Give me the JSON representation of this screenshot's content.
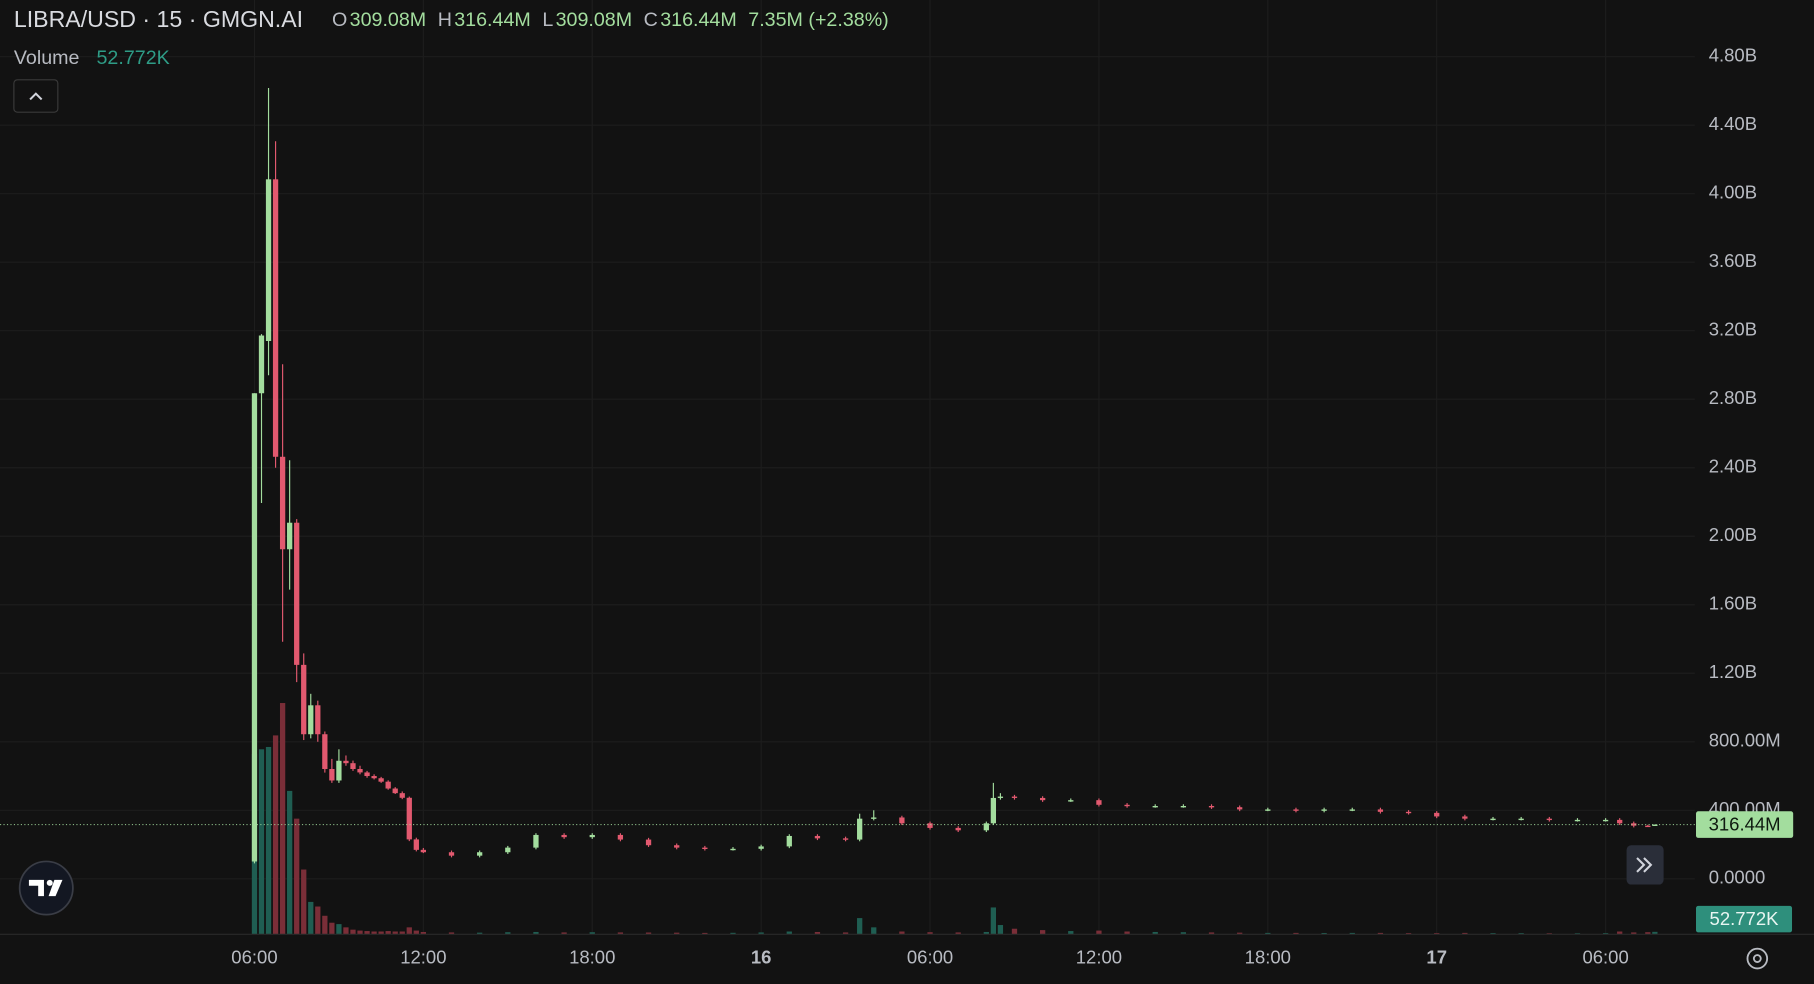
{
  "chart_data": {
    "type": "candlestick",
    "symbol": "LIBRA/USD · 15 · GMGN.AI",
    "ohlc_legend": [
      {
        "key": "O",
        "value": "309.08M"
      },
      {
        "key": "H",
        "value": "316.44M"
      },
      {
        "key": "L",
        "value": "309.08M"
      },
      {
        "key": "C",
        "value": "316.44M"
      }
    ],
    "change": "7.35M (+2.38%)",
    "volume_title": "Volume",
    "volume_value_label": "52.772K",
    "x": [
      6,
      6.25,
      6.5,
      6.75,
      7,
      7.25,
      7.5,
      7.75,
      8,
      8.25,
      8.5,
      8.75,
      9,
      9.25,
      9.5,
      9.75,
      10,
      10.25,
      10.5,
      10.75,
      11,
      11.25,
      11.5,
      11.75,
      12,
      13,
      14,
      15,
      16,
      17,
      18,
      19,
      20,
      21,
      22,
      23,
      24,
      25,
      26,
      27,
      27.5,
      28,
      29,
      30,
      31,
      32,
      32.25,
      32.5,
      33,
      34,
      35,
      36,
      37,
      38,
      39,
      40,
      41,
      42,
      43,
      44,
      45,
      46,
      47,
      48,
      49,
      50,
      51,
      52,
      53,
      54,
      54.5,
      55,
      55.5,
      55.75
    ],
    "open": [
      101000000.0,
      2835000000.0,
      3140000000.0,
      4084000000.0,
      2464000000.0,
      1924000000.0,
      2079000000.0,
      1249000000.0,
      844000000.0,
      1013000000.0,
      844000000.0,
      641000000.0,
      574000000.0,
      689000000.0,
      675000000.0,
      641000000.0,
      621000000.0,
      600000000.0,
      587000000.0,
      567000000.0,
      527000000.0,
      500000000.0,
      473000000.0,
      230000000.0,
      169000000.0,
      155000000.0,
      135000000.0,
      155000000.0,
      182000000.0,
      256000000.0,
      243000000.0,
      256000000.0,
      229000000.0,
      196000000.0,
      182000000.0,
      175000000.0,
      175000000.0,
      189000000.0,
      250000000.0,
      236000000.0,
      229000000.0,
      351000000.0,
      358000000.0,
      324000000.0,
      297000000.0,
      283000000.0,
      324000000.0,
      472000000.0,
      480000000.0,
      472000000.0,
      459000000.0,
      459000000.0,
      432000000.0,
      425000000.0,
      425000000.0,
      425000000.0,
      418000000.0,
      405000000.0,
      405000000.0,
      398000000.0,
      405000000.0,
      405000000.0,
      391000000.0,
      385000000.0,
      364000000.0,
      351000000.0,
      351000000.0,
      351000000.0,
      344000000.0,
      344000000.0,
      344000000.0,
      324000000.0,
      310000000.0,
      309080000.0
    ],
    "high": [
      2835000000.0,
      3180000000.0,
      4617000000.0,
      4306000000.0,
      3004000000.0,
      2444000000.0,
      2100000000.0,
      1316000000.0,
      1080000000.0,
      1040000000.0,
      860000000.0,
      700000000.0,
      756000000.0,
      720000000.0,
      690000000.0,
      660000000.0,
      630000000.0,
      610000000.0,
      595000000.0,
      575000000.0,
      535000000.0,
      510000000.0,
      480000000.0,
      240000000.0,
      180000000.0,
      165000000.0,
      165000000.0,
      192000000.0,
      266000000.0,
      266000000.0,
      266000000.0,
      266000000.0,
      239000000.0,
      206000000.0,
      192000000.0,
      185000000.0,
      199000000.0,
      260000000.0,
      260000000.0,
      246000000.0,
      380000000.0,
      400000000.0,
      368000000.0,
      334000000.0,
      307000000.0,
      334000000.0,
      560000000.0,
      500000000.0,
      490000000.0,
      482000000.0,
      469000000.0,
      469000000.0,
      442000000.0,
      435000000.0,
      435000000.0,
      435000000.0,
      428000000.0,
      415000000.0,
      415000000.0,
      415000000.0,
      415000000.0,
      415000000.0,
      401000000.0,
      395000000.0,
      374000000.0,
      361000000.0,
      361000000.0,
      361000000.0,
      354000000.0,
      354000000.0,
      354000000.0,
      334000000.0,
      315000000.0,
      316440000.0
    ],
    "low": [
      90000000.0,
      2194000000.0,
      2940000000.0,
      2400000000.0,
      1384000000.0,
      1688000000.0,
      1148000000.0,
      810000000.0,
      820000000.0,
      800000000.0,
      620000000.0,
      560000000.0,
      560000000.0,
      660000000.0,
      630000000.0,
      610000000.0,
      590000000.0,
      580000000.0,
      560000000.0,
      520000000.0,
      495000000.0,
      465000000.0,
      220000000.0,
      160000000.0,
      150000000.0,
      125000000.0,
      125000000.0,
      145000000.0,
      172000000.0,
      233000000.0,
      233000000.0,
      219000000.0,
      186000000.0,
      172000000.0,
      165000000.0,
      165000000.0,
      165000000.0,
      179000000.0,
      226000000.0,
      219000000.0,
      219000000.0,
      341000000.0,
      314000000.0,
      287000000.0,
      273000000.0,
      273000000.0,
      314000000.0,
      462000000.0,
      462000000.0,
      449000000.0,
      449000000.0,
      422000000.0,
      415000000.0,
      415000000.0,
      415000000.0,
      408000000.0,
      395000000.0,
      395000000.0,
      388000000.0,
      388000000.0,
      395000000.0,
      381000000.0,
      375000000.0,
      354000000.0,
      341000000.0,
      341000000.0,
      341000000.0,
      334000000.0,
      334000000.0,
      334000000.0,
      314000000.0,
      300000000.0,
      305000000.0,
      309080000.0
    ],
    "close": [
      2835000000.0,
      3172000000.0,
      4084000000.0,
      2464000000.0,
      1924000000.0,
      2079000000.0,
      1249000000.0,
      844000000.0,
      1013000000.0,
      844000000.0,
      641000000.0,
      574000000.0,
      689000000.0,
      675000000.0,
      641000000.0,
      621000000.0,
      600000000.0,
      587000000.0,
      567000000.0,
      527000000.0,
      500000000.0,
      473000000.0,
      230000000.0,
      169000000.0,
      155000000.0,
      135000000.0,
      155000000.0,
      182000000.0,
      256000000.0,
      243000000.0,
      256000000.0,
      229000000.0,
      196000000.0,
      182000000.0,
      175000000.0,
      175000000.0,
      189000000.0,
      250000000.0,
      236000000.0,
      229000000.0,
      351000000.0,
      358000000.0,
      324000000.0,
      297000000.0,
      283000000.0,
      324000000.0,
      472000000.0,
      480000000.0,
      472000000.0,
      459000000.0,
      459000000.0,
      432000000.0,
      425000000.0,
      425000000.0,
      425000000.0,
      418000000.0,
      405000000.0,
      405000000.0,
      398000000.0,
      405000000.0,
      405000000.0,
      391000000.0,
      385000000.0,
      364000000.0,
      351000000.0,
      351000000.0,
      351000000.0,
      344000000.0,
      344000000.0,
      344000000.0,
      324000000.0,
      310000000.0,
      309080000.0,
      316440000.0
    ],
    "volume": [
      3900000,
      4000000,
      4050000,
      4300000,
      5000000,
      3100000,
      2500000,
      1400000,
      700000,
      600000,
      400000,
      250000,
      220000,
      150000,
      100000,
      80000,
      70000,
      60000,
      60000,
      70000,
      60000,
      60000,
      150000,
      80000,
      50000,
      40000,
      35000,
      45000,
      50000,
      40000,
      45000,
      40000,
      38000,
      35000,
      30000,
      32000,
      40000,
      60000,
      50000,
      40000,
      350000,
      150000,
      60000,
      45000,
      40000,
      50000,
      580000,
      200000,
      120000,
      90000,
      70000,
      80000,
      60000,
      50000,
      45000,
      40000,
      35000,
      30000,
      30000,
      28000,
      30000,
      30000,
      25000,
      25000,
      30000,
      25000,
      25000,
      22000,
      22000,
      25000,
      60000,
      40000,
      45000,
      52772
    ],
    "xlim": [
      -3.04,
      57.17
    ],
    "xticks": [
      {
        "value": 6,
        "label": "06:00"
      },
      {
        "value": 12,
        "label": "12:00"
      },
      {
        "value": 18,
        "label": "18:00"
      },
      {
        "value": 24,
        "label": "16"
      },
      {
        "value": 30,
        "label": "06:00"
      },
      {
        "value": 36,
        "label": "12:00"
      },
      {
        "value": 42,
        "label": "18:00"
      },
      {
        "value": 48,
        "label": "17"
      },
      {
        "value": 54,
        "label": "06:00"
      }
    ],
    "ylim": [
      -324000000,
      5131000000
    ],
    "yticks": [
      {
        "value": 0,
        "label": "0.0000"
      },
      {
        "value": 400000000,
        "label": "400.00M"
      },
      {
        "value": 800000000,
        "label": "800.00M"
      },
      {
        "value": 1200000000,
        "label": "1.20B"
      },
      {
        "value": 1600000000,
        "label": "1.60B"
      },
      {
        "value": 2000000000,
        "label": "2.00B"
      },
      {
        "value": 2400000000,
        "label": "2.40B"
      },
      {
        "value": 2800000000,
        "label": "2.80B"
      },
      {
        "value": 3200000000,
        "label": "3.20B"
      },
      {
        "value": 3600000000,
        "label": "3.60B"
      },
      {
        "value": 4000000000,
        "label": "4.00B"
      },
      {
        "value": 4400000000,
        "label": "4.40B"
      },
      {
        "value": 4800000000,
        "label": "4.80B"
      }
    ],
    "vlim": [
      0,
      5500000
    ],
    "grid": true,
    "up_color": "#a3dd9e",
    "down_color": "#e2596f",
    "volume_up_color": "#1f5e52",
    "volume_down_color": "#7a2e38",
    "price_tag_color": "#a3dd9e",
    "volume_tag_color": "#2e8f7c"
  }
}
